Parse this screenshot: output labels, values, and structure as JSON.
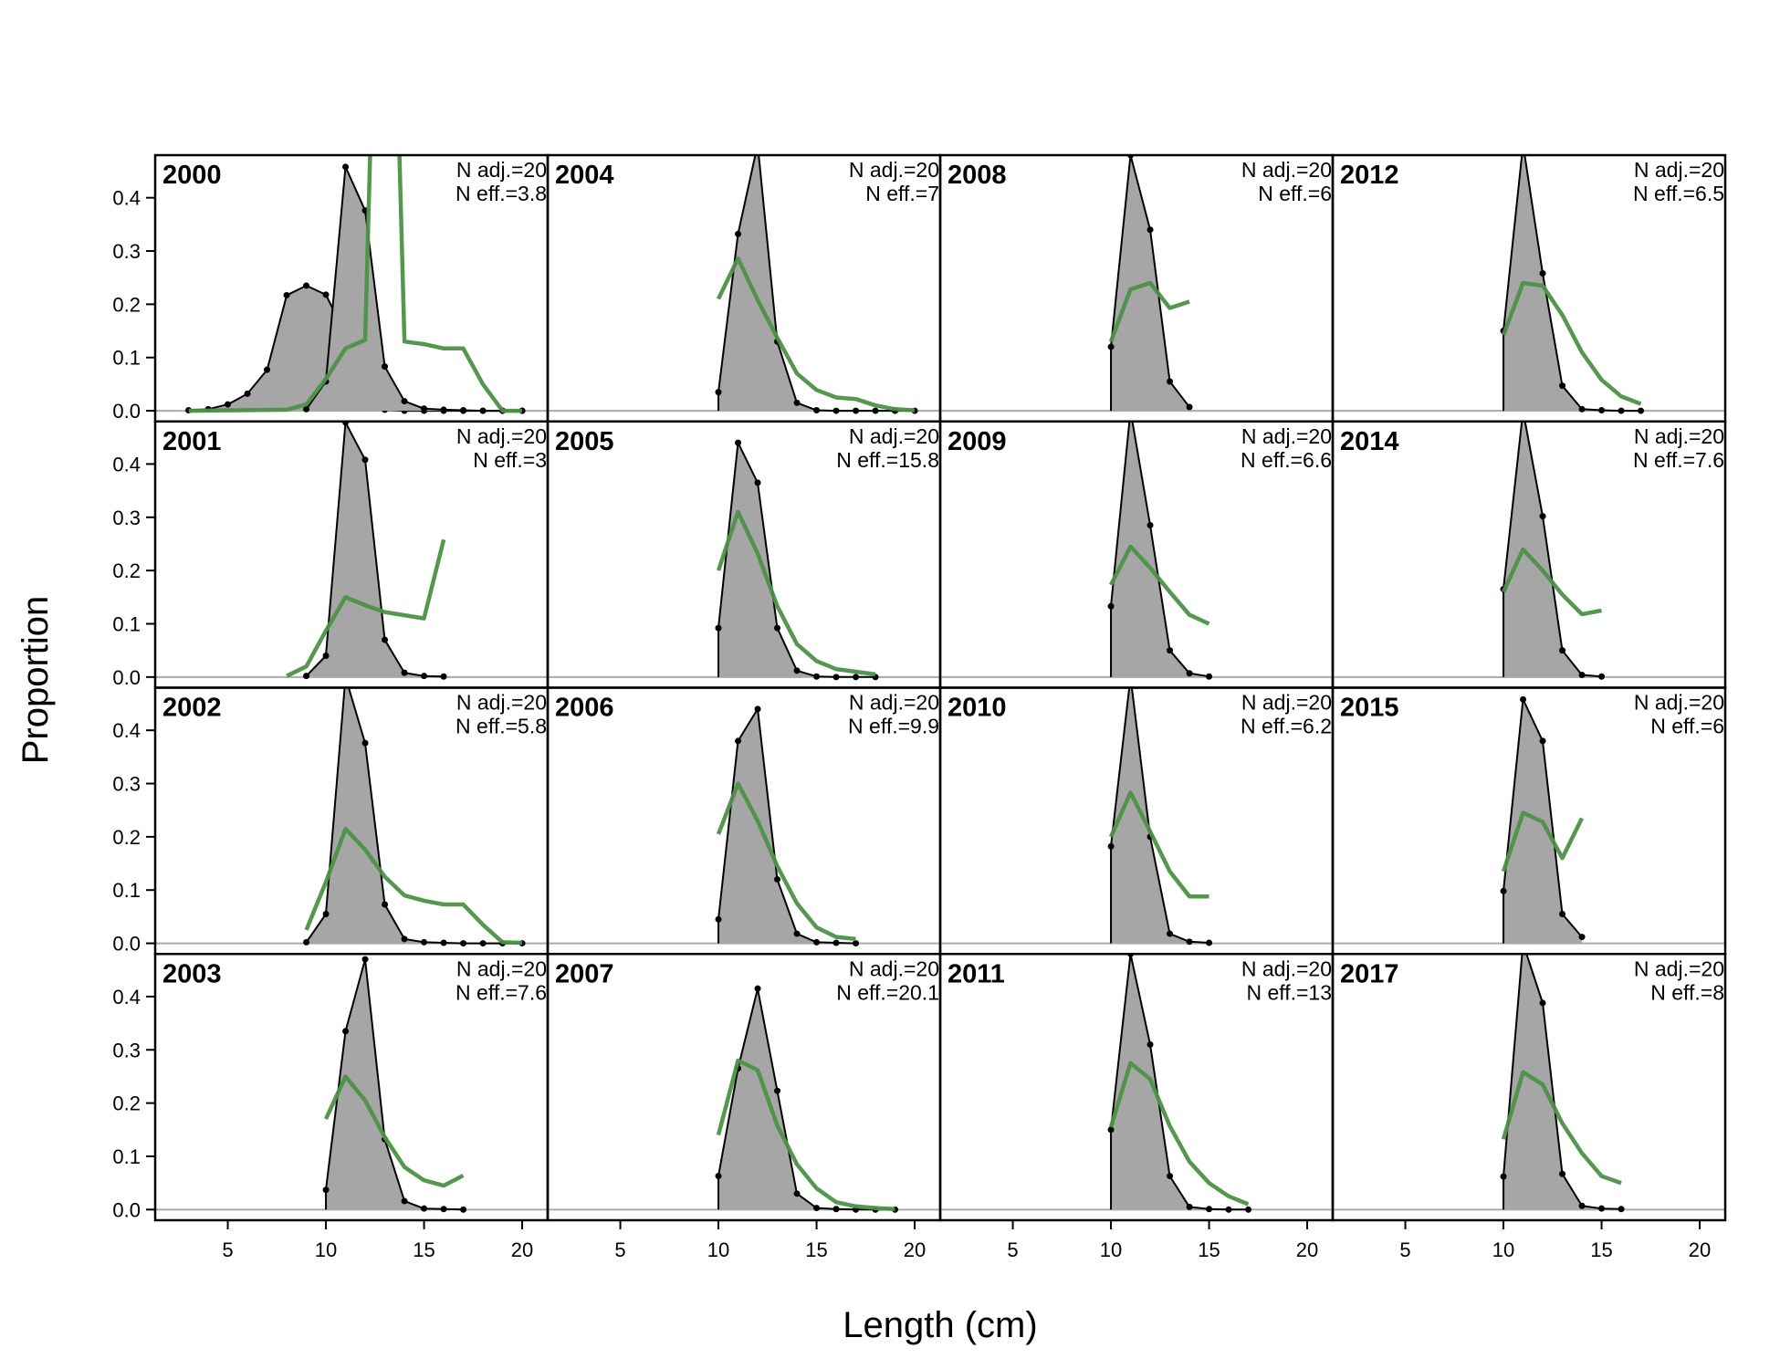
{
  "chart_data": {
    "type": "line",
    "xlabel": "Length (cm)",
    "ylabel": "Proportion",
    "xlim": [
      1.3,
      21.3
    ],
    "ylim": [
      -0.02,
      0.48
    ],
    "xticks": [
      5,
      10,
      15,
      20
    ],
    "yticks": [
      0.0,
      0.1,
      0.2,
      0.3,
      0.4
    ],
    "ytick_labels": [
      "0.0",
      "0.1",
      "0.2",
      "0.3",
      "0.4"
    ],
    "colors": {
      "observed_fill": "#a6a6a6",
      "observed_line": "#000000",
      "expected": "#4c9146",
      "zero_line": "#aaaaaa"
    },
    "series_description": [
      "observed (grey area with points)",
      "expected (green line)"
    ],
    "panels": [
      {
        "year": "2000",
        "n_adj": "N adj.=20",
        "n_eff": "N eff.=3.8",
        "obs_x": [
          3,
          4,
          5,
          6,
          7,
          8,
          9,
          10,
          11,
          12,
          13,
          14,
          15,
          16,
          17,
          18,
          19,
          20
        ],
        "obs_y": [
          0.001,
          0.003,
          0.012,
          0.032,
          0.077,
          0.217,
          0.235,
          0.218,
          0.144,
          0.046,
          0.002,
          0,
          0,
          0,
          0,
          0,
          0,
          0
        ],
        "obs2_x": [
          9,
          10,
          11,
          12,
          13,
          14,
          15,
          16,
          17,
          18,
          19,
          20
        ],
        "obs2_y": [
          0.003,
          0.055,
          0.458,
          0.376,
          0.083,
          0.018,
          0.004,
          0.002,
          0.001,
          0,
          0,
          0
        ],
        "exp_x": [
          3,
          8,
          9,
          10,
          11,
          12,
          13,
          14,
          15,
          16,
          17,
          18,
          19,
          20
        ],
        "exp_y": [
          0,
          0.002,
          0.012,
          0.06,
          0.117,
          0.133,
          1.5,
          0.13,
          0.125,
          0.117,
          0.117,
          0.05,
          0,
          0
        ]
      },
      {
        "year": "2001",
        "n_adj": "N adj.=20",
        "n_eff": "N eff.=3",
        "obs_x": [
          9,
          10,
          11,
          12,
          13,
          14,
          15,
          16
        ],
        "obs_y": [
          0.002,
          0.04,
          0.478,
          0.408,
          0.07,
          0.008,
          0.002,
          0.001
        ],
        "exp_x": [
          8,
          9,
          10,
          11,
          12,
          13,
          14,
          15,
          16
        ],
        "exp_y": [
          0.002,
          0.02,
          0.087,
          0.15,
          0.135,
          0.122,
          0.116,
          0.11,
          0.258
        ]
      },
      {
        "year": "2002",
        "n_adj": "N adj.=20",
        "n_eff": "N eff.=5.8",
        "obs_x": [
          9,
          10,
          11,
          12,
          13,
          14,
          15,
          16,
          17,
          18,
          19,
          20
        ],
        "obs_y": [
          0.002,
          0.055,
          0.5,
          0.376,
          0.073,
          0.008,
          0.002,
          0.001,
          0,
          0,
          0,
          0
        ],
        "exp_x": [
          9,
          10,
          11,
          12,
          13,
          14,
          15,
          16,
          17,
          18,
          19,
          20
        ],
        "exp_y": [
          0.025,
          0.115,
          0.215,
          0.176,
          0.125,
          0.09,
          0.08,
          0.073,
          0.073,
          0.035,
          0.002,
          0.001
        ]
      },
      {
        "year": "2003",
        "n_adj": "N adj.=20",
        "n_eff": "N eff.=7.6",
        "obs_x": [
          10,
          11,
          12,
          13,
          14,
          15,
          16,
          17
        ],
        "obs_y": [
          0.037,
          0.335,
          0.47,
          0.132,
          0.016,
          0.002,
          0.001,
          0
        ],
        "exp_x": [
          10,
          11,
          12,
          13,
          14,
          15,
          16,
          17
        ],
        "exp_y": [
          0.17,
          0.25,
          0.205,
          0.136,
          0.08,
          0.055,
          0.045,
          0.064
        ]
      },
      {
        "year": "2004",
        "n_adj": "N adj.=20",
        "n_eff": "N eff.=7",
        "obs_x": [
          10,
          11,
          12,
          13,
          14,
          15,
          16,
          17,
          18,
          19,
          20
        ],
        "obs_y": [
          0.035,
          0.332,
          0.5,
          0.13,
          0.015,
          0.001,
          0,
          0,
          0,
          0,
          0
        ],
        "exp_x": [
          10,
          11,
          12,
          13,
          14,
          15,
          16,
          17,
          18,
          19,
          20
        ],
        "exp_y": [
          0.21,
          0.286,
          0.208,
          0.137,
          0.07,
          0.039,
          0.025,
          0.022,
          0.01,
          0.003,
          0.001
        ]
      },
      {
        "year": "2005",
        "n_adj": "N adj.=20",
        "n_eff": "N eff.=15.8",
        "obs_x": [
          10,
          11,
          12,
          13,
          14,
          15,
          16,
          17,
          18
        ],
        "obs_y": [
          0.092,
          0.44,
          0.365,
          0.092,
          0.012,
          0.001,
          0,
          0,
          0
        ],
        "exp_x": [
          10,
          11,
          12,
          13,
          14,
          15,
          16,
          17,
          18
        ],
        "exp_y": [
          0.2,
          0.31,
          0.232,
          0.133,
          0.062,
          0.03,
          0.015,
          0.01,
          0.005
        ]
      },
      {
        "year": "2006",
        "n_adj": "N adj.=20",
        "n_eff": "N eff.=9.9",
        "obs_x": [
          10,
          11,
          12,
          13,
          14,
          15,
          16,
          17
        ],
        "obs_y": [
          0.045,
          0.38,
          0.44,
          0.12,
          0.018,
          0.002,
          0.001,
          0
        ],
        "exp_x": [
          10,
          11,
          12,
          13,
          14,
          15,
          16,
          17
        ],
        "exp_y": [
          0.205,
          0.3,
          0.23,
          0.145,
          0.075,
          0.03,
          0.012,
          0.008
        ]
      },
      {
        "year": "2007",
        "n_adj": "N adj.=20",
        "n_eff": "N eff.=20.1",
        "obs_x": [
          10,
          11,
          12,
          13,
          14,
          15,
          16,
          17,
          18,
          19
        ],
        "obs_y": [
          0.063,
          0.265,
          0.415,
          0.223,
          0.03,
          0.003,
          0.001,
          0,
          0,
          0
        ],
        "exp_x": [
          10,
          11,
          12,
          13,
          14,
          15,
          16,
          17,
          18,
          19
        ],
        "exp_y": [
          0.14,
          0.28,
          0.262,
          0.158,
          0.085,
          0.04,
          0.014,
          0.006,
          0.003,
          0.001
        ]
      },
      {
        "year": "2008",
        "n_adj": "N adj.=20",
        "n_eff": "N eff.=6",
        "obs_x": [
          10,
          11,
          12,
          13,
          14
        ],
        "obs_y": [
          0.12,
          0.48,
          0.34,
          0.055,
          0.007
        ],
        "exp_x": [
          10,
          11,
          12,
          13,
          14
        ],
        "exp_y": [
          0.13,
          0.228,
          0.24,
          0.193,
          0.205
        ]
      },
      {
        "year": "2009",
        "n_adj": "N adj.=20",
        "n_eff": "N eff.=6.6",
        "obs_x": [
          10,
          11,
          12,
          13,
          14,
          15
        ],
        "obs_y": [
          0.133,
          0.5,
          0.285,
          0.05,
          0.007,
          0.001
        ],
        "exp_x": [
          10,
          11,
          12,
          13,
          14,
          15
        ],
        "exp_y": [
          0.173,
          0.245,
          0.205,
          0.16,
          0.117,
          0.1
        ]
      },
      {
        "year": "2010",
        "n_adj": "N adj.=20",
        "n_eff": "N eff.=6.2",
        "obs_x": [
          10,
          11,
          12,
          13,
          14,
          15
        ],
        "obs_y": [
          0.182,
          0.5,
          0.2,
          0.018,
          0.003,
          0.001
        ],
        "exp_x": [
          10,
          11,
          12,
          13,
          14,
          15
        ],
        "exp_y": [
          0.2,
          0.283,
          0.21,
          0.135,
          0.088,
          0.088
        ]
      },
      {
        "year": "2011",
        "n_adj": "N adj.=20",
        "n_eff": "N eff.=13",
        "obs_x": [
          10,
          11,
          12,
          13,
          14,
          15,
          16,
          17
        ],
        "obs_y": [
          0.15,
          0.48,
          0.31,
          0.063,
          0.005,
          0.001,
          0,
          0
        ],
        "exp_x": [
          10,
          11,
          12,
          13,
          14,
          15,
          16,
          17
        ],
        "exp_y": [
          0.155,
          0.275,
          0.245,
          0.157,
          0.09,
          0.05,
          0.025,
          0.01
        ]
      },
      {
        "year": "2012",
        "n_adj": "N adj.=20",
        "n_eff": "N eff.=6.5",
        "obs_x": [
          10,
          11,
          12,
          13,
          14,
          15,
          16,
          17
        ],
        "obs_y": [
          0.15,
          0.5,
          0.258,
          0.047,
          0.003,
          0.001,
          0,
          0
        ],
        "exp_x": [
          10,
          11,
          12,
          13,
          14,
          15,
          16,
          17
        ],
        "exp_y": [
          0.142,
          0.24,
          0.235,
          0.18,
          0.11,
          0.058,
          0.027,
          0.013
        ]
      },
      {
        "year": "2014",
        "n_adj": "N adj.=20",
        "n_eff": "N eff.=7.6",
        "obs_x": [
          10,
          11,
          12,
          13,
          14,
          15
        ],
        "obs_y": [
          0.165,
          0.5,
          0.302,
          0.05,
          0.004,
          0.001
        ],
        "exp_x": [
          10,
          11,
          12,
          13,
          14,
          15
        ],
        "exp_y": [
          0.16,
          0.24,
          0.2,
          0.155,
          0.118,
          0.125
        ]
      },
      {
        "year": "2015",
        "n_adj": "N adj.=20",
        "n_eff": "N eff.=6",
        "obs_x": [
          10,
          11,
          12,
          13,
          14
        ],
        "obs_y": [
          0.098,
          0.458,
          0.38,
          0.055,
          0.012
        ],
        "exp_x": [
          10,
          11,
          12,
          13,
          14
        ],
        "exp_y": [
          0.135,
          0.245,
          0.228,
          0.16,
          0.235
        ]
      },
      {
        "year": "2017",
        "n_adj": "N adj.=20",
        "n_eff": "N eff.=8",
        "obs_x": [
          10,
          11,
          12,
          13,
          14,
          15,
          16
        ],
        "obs_y": [
          0.062,
          0.5,
          0.388,
          0.067,
          0.007,
          0.002,
          0.001
        ],
        "exp_x": [
          10,
          11,
          12,
          13,
          14,
          15,
          16
        ],
        "exp_y": [
          0.132,
          0.258,
          0.235,
          0.162,
          0.106,
          0.063,
          0.05
        ]
      }
    ]
  }
}
